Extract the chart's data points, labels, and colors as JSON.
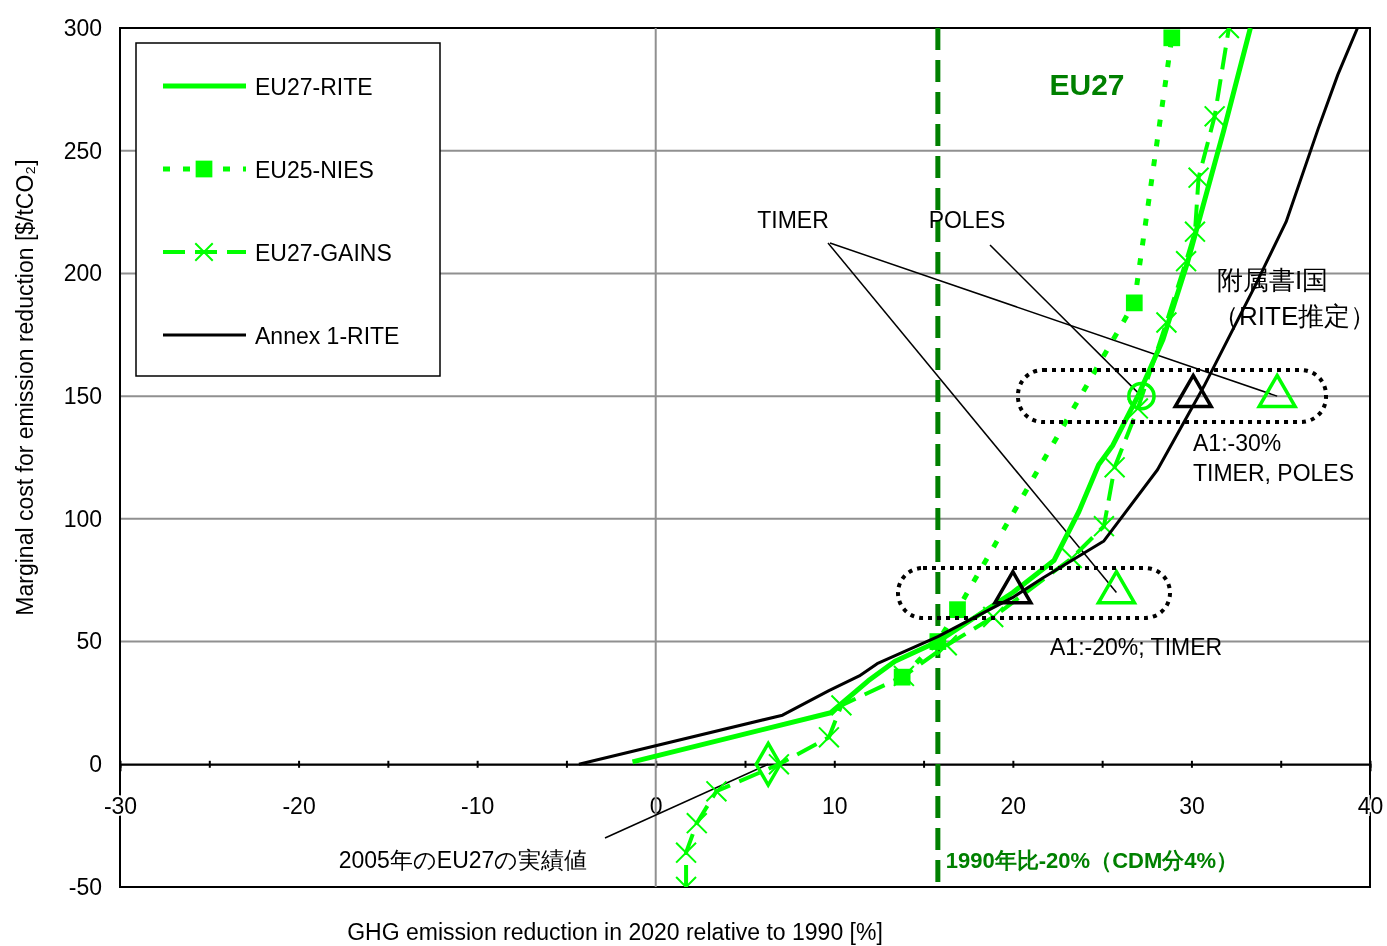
{
  "chart_data": {
    "type": "line",
    "xlabel": "GHG emission reduction in 2020 relative to 1990 [%]",
    "ylabel": "Marginal cost for emission reduction [$/tCO₂]",
    "xlim": [
      -30,
      40
    ],
    "ylim": [
      -50,
      300
    ],
    "xticks": [
      -30,
      {
        "value": -25,
        "label": null
      },
      -20,
      {
        "value": -15,
        "label": null
      },
      -10,
      {
        "value": -5,
        "label": null
      },
      0,
      {
        "value": 5,
        "label": null
      },
      10,
      {
        "value": 15,
        "label": null
      },
      20,
      {
        "value": 25,
        "label": null
      },
      30,
      {
        "value": 35,
        "label": null
      },
      40
    ],
    "yticks": [
      -50,
      0,
      50,
      100,
      150,
      200,
      250,
      300
    ],
    "grid": "y",
    "legend": "top left",
    "series": [
      {
        "name": "EU27-RITE",
        "color": "#00ff00",
        "line_style": "solid",
        "marker": "none",
        "x": [
          -1.3,
          9.8,
          11.9,
          13.4,
          15.8,
          20,
          22.3,
          23.7,
          24.8,
          25.6,
          27,
          28.4,
          29.8,
          31.8,
          33.3
        ],
        "values": [
          1,
          21,
          34,
          42,
          50,
          70,
          83,
          103,
          122,
          130,
          150,
          173,
          205,
          258,
          300
        ]
      },
      {
        "name": "EU25-NIES",
        "color": "#00ff00",
        "line_style": "dotted",
        "marker": "square",
        "x": [
          13.8,
          15.8,
          16.9,
          26.8,
          28.9
        ],
        "values": [
          35.5,
          50,
          63,
          188,
          296
        ]
      },
      {
        "name": "EU27-GAINS",
        "color": "#00ff00",
        "line_style": "dashed",
        "marker": "cross",
        "x": [
          1.7,
          1.7,
          2.3,
          3.4,
          6.9,
          9.7,
          10.4,
          13.9,
          16.3,
          18.9,
          23.3,
          25.1,
          25.7,
          27,
          28.6,
          29.7,
          30.2,
          30.4,
          31.3,
          32.1
        ],
        "values": [
          -50,
          -36,
          -24,
          -11,
          0,
          11,
          24,
          36,
          48.5,
          60,
          84,
          97,
          121,
          145,
          180,
          205,
          217,
          239,
          264,
          300
        ]
      },
      {
        "name": "Annex 1-RITE",
        "color": "#000000",
        "line_style": "solid",
        "marker": "none",
        "x": [
          -4.3,
          7.1,
          9.7,
          11.4,
          12.4,
          15.8,
          20,
          21.7,
          25.1,
          28.1,
          30.7,
          33.5,
          35.3,
          37.1,
          38.2,
          39.3
        ],
        "values": [
          0,
          20,
          30,
          36,
          41,
          52,
          68,
          76,
          91,
          120,
          154,
          194,
          221,
          259,
          281,
          300
        ]
      },
      {
        "type": "scatter",
        "color": "#000000",
        "marker": "triangle",
        "x": [
          20,
          30.1
        ],
        "values": [
          70,
          150
        ]
      },
      {
        "type": "scatter",
        "color": "#00ff00",
        "marker": "triangle",
        "x": [
          25.8,
          34.8
        ],
        "values": [
          70,
          150
        ]
      },
      {
        "type": "scatter",
        "color": "#00ff00",
        "marker": "circle",
        "x": [
          27.2
        ],
        "values": [
          150
        ]
      },
      {
        "type": "scatter",
        "color": "#00ff00",
        "marker": "diamond",
        "x": [
          6.3
        ],
        "values": [
          0
        ]
      }
    ],
    "ref_lines": [
      {
        "axis": "x",
        "value": 0,
        "color": "#909090",
        "line_style": "solid"
      },
      {
        "axis": "x",
        "value": 15.8,
        "label": "1990年比-20%（CDM分4%）",
        "color": "#008000",
        "line_style": "dashed"
      }
    ],
    "annotations": [
      "EU27",
      "TIMER",
      {
        "text": "POLES",
        "x": 27.2,
        "y": 150
      },
      "附属書I国",
      "（RITE推定）",
      "A1:-30%\nTIMER, POLES",
      "A1:-20%; TIMER",
      {
        "text": "2005年のEU27の実績値",
        "x": 6.3,
        "y": 0
      }
    ]
  }
}
